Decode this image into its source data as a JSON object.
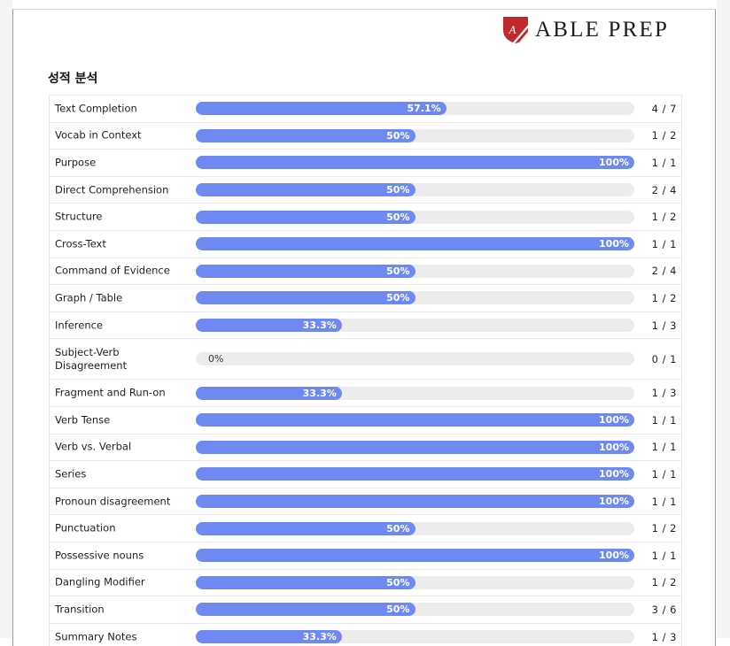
{
  "brand": {
    "name": "ABLE PREP",
    "logo_letter": "A"
  },
  "section_title": "성적 분석",
  "rows": [
    {
      "label": "Text Completion",
      "percent_label": "57.1%",
      "fraction": 0.571,
      "score": "4 / 7"
    },
    {
      "label": "Vocab in Context",
      "percent_label": "50%",
      "fraction": 0.5,
      "score": "1 / 2"
    },
    {
      "label": "Purpose",
      "percent_label": "100%",
      "fraction": 1.0,
      "score": "1 / 1"
    },
    {
      "label": "Direct Comprehension",
      "percent_label": "50%",
      "fraction": 0.5,
      "score": "2 / 4"
    },
    {
      "label": "Structure",
      "percent_label": "50%",
      "fraction": 0.5,
      "score": "1 / 2"
    },
    {
      "label": "Cross-Text",
      "percent_label": "100%",
      "fraction": 1.0,
      "score": "1 / 1"
    },
    {
      "label": "Command of Evidence",
      "percent_label": "50%",
      "fraction": 0.5,
      "score": "2 / 4"
    },
    {
      "label": "Graph / Table",
      "percent_label": "50%",
      "fraction": 0.5,
      "score": "1 / 2"
    },
    {
      "label": "Inference",
      "percent_label": "33.3%",
      "fraction": 0.333,
      "score": "1 / 3"
    },
    {
      "label": "Subject-Verb Disagreement",
      "percent_label": "0%",
      "fraction": 0.0,
      "score": "0 / 1",
      "tall": true
    },
    {
      "label": "Fragment and Run-on",
      "percent_label": "33.3%",
      "fraction": 0.333,
      "score": "1 / 3"
    },
    {
      "label": "Verb Tense",
      "percent_label": "100%",
      "fraction": 1.0,
      "score": "1 / 1"
    },
    {
      "label": "Verb vs. Verbal",
      "percent_label": "100%",
      "fraction": 1.0,
      "score": "1 / 1"
    },
    {
      "label": "Series",
      "percent_label": "100%",
      "fraction": 1.0,
      "score": "1 / 1"
    },
    {
      "label": "Pronoun disagreement",
      "percent_label": "100%",
      "fraction": 1.0,
      "score": "1 / 1"
    },
    {
      "label": "Punctuation",
      "percent_label": "50%",
      "fraction": 0.5,
      "score": "1 / 2"
    },
    {
      "label": "Possessive nouns",
      "percent_label": "100%",
      "fraction": 1.0,
      "score": "1 / 1"
    },
    {
      "label": "Dangling Modifier",
      "percent_label": "50%",
      "fraction": 0.5,
      "score": "1 / 2"
    },
    {
      "label": "Transition",
      "percent_label": "50%",
      "fraction": 0.5,
      "score": "3 / 6"
    },
    {
      "label": "Summary Notes",
      "percent_label": "33.3%",
      "fraction": 0.333,
      "score": "1 / 3"
    }
  ],
  "colors": {
    "bar_fill": "#6e8af2",
    "bar_track": "#ececec",
    "logo_red": "#c0282d"
  }
}
